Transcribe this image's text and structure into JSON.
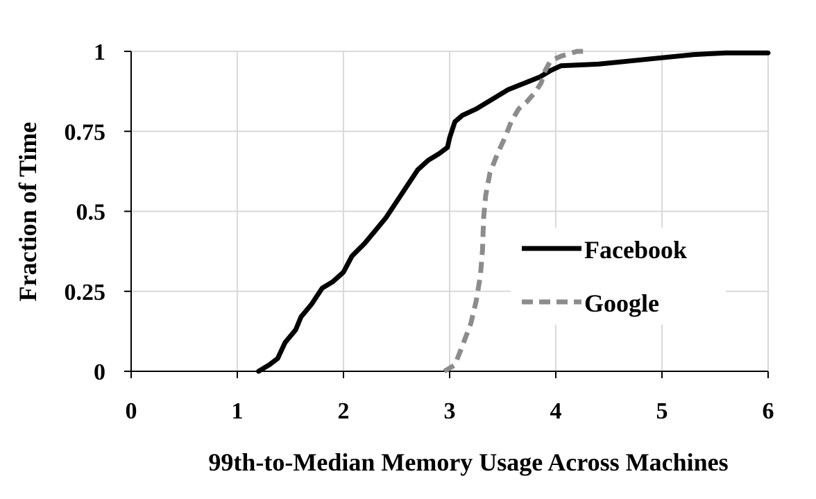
{
  "chart_data": {
    "type": "line",
    "title": "",
    "xlabel": "99th-to-Median Memory Usage Across Machines",
    "ylabel": "Fraction of Time",
    "xlim": [
      0,
      6
    ],
    "ylim": [
      0,
      1
    ],
    "x_ticks": [
      "0",
      "1",
      "2",
      "3",
      "4",
      "5",
      "6"
    ],
    "y_ticks": [
      "0",
      "0.25",
      "0.5",
      "0.75",
      "1"
    ],
    "grid": true,
    "legend_position": "right-center",
    "series": [
      {
        "name": "Facebook",
        "color": "#000000",
        "style": "solid",
        "points": [
          [
            1.2,
            0
          ],
          [
            1.3,
            0.02
          ],
          [
            1.38,
            0.04
          ],
          [
            1.45,
            0.09
          ],
          [
            1.55,
            0.13
          ],
          [
            1.6,
            0.17
          ],
          [
            1.7,
            0.21
          ],
          [
            1.8,
            0.26
          ],
          [
            1.9,
            0.28
          ],
          [
            2.0,
            0.31
          ],
          [
            2.08,
            0.36
          ],
          [
            2.2,
            0.4
          ],
          [
            2.3,
            0.44
          ],
          [
            2.4,
            0.48
          ],
          [
            2.5,
            0.53
          ],
          [
            2.6,
            0.58
          ],
          [
            2.7,
            0.63
          ],
          [
            2.8,
            0.66
          ],
          [
            2.9,
            0.68
          ],
          [
            2.98,
            0.7
          ],
          [
            3.0,
            0.73
          ],
          [
            3.05,
            0.78
          ],
          [
            3.12,
            0.8
          ],
          [
            3.25,
            0.82
          ],
          [
            3.35,
            0.84
          ],
          [
            3.45,
            0.86
          ],
          [
            3.55,
            0.88
          ],
          [
            3.7,
            0.9
          ],
          [
            3.85,
            0.92
          ],
          [
            3.95,
            0.94
          ],
          [
            4.05,
            0.955
          ],
          [
            4.4,
            0.96
          ],
          [
            4.7,
            0.97
          ],
          [
            5.0,
            0.98
          ],
          [
            5.3,
            0.99
          ],
          [
            5.6,
            0.995
          ],
          [
            6.0,
            0.995
          ]
        ]
      },
      {
        "name": "Google",
        "color": "#8c8c8c",
        "style": "dashed",
        "points": [
          [
            2.95,
            0
          ],
          [
            3.05,
            0.02
          ],
          [
            3.12,
            0.08
          ],
          [
            3.2,
            0.15
          ],
          [
            3.25,
            0.22
          ],
          [
            3.29,
            0.3
          ],
          [
            3.31,
            0.38
          ],
          [
            3.32,
            0.48
          ],
          [
            3.34,
            0.55
          ],
          [
            3.38,
            0.62
          ],
          [
            3.45,
            0.68
          ],
          [
            3.52,
            0.73
          ],
          [
            3.58,
            0.78
          ],
          [
            3.65,
            0.82
          ],
          [
            3.72,
            0.84
          ],
          [
            3.8,
            0.87
          ],
          [
            3.86,
            0.9
          ],
          [
            3.9,
            0.94
          ],
          [
            3.95,
            0.97
          ],
          [
            4.05,
            0.985
          ],
          [
            4.2,
            1.0
          ],
          [
            4.3,
            1.0
          ]
        ]
      }
    ]
  }
}
